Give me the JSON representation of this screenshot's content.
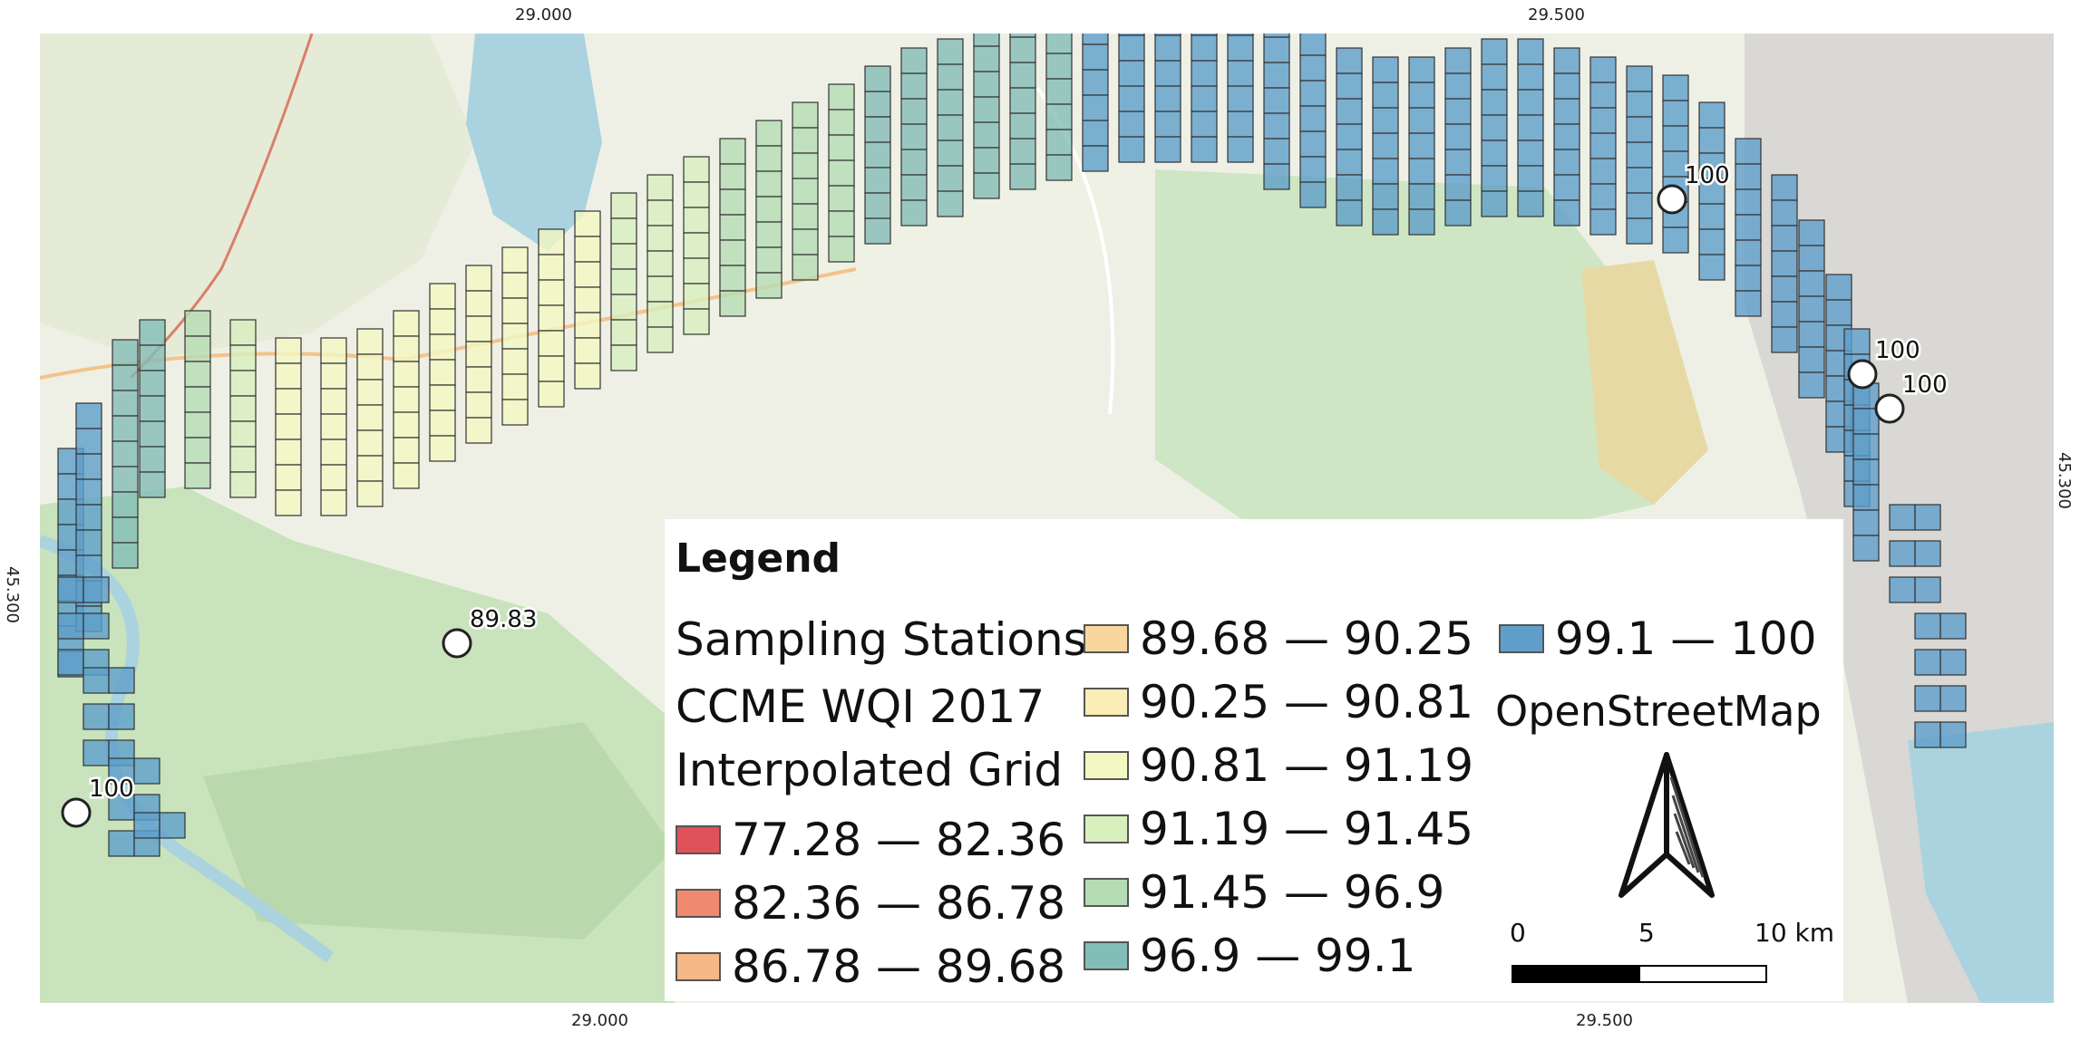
{
  "coordinates": {
    "top": [
      "29.000",
      "29.500"
    ],
    "bottom": [
      "29.000",
      "29.500"
    ],
    "left": "45.300",
    "right": "45.300"
  },
  "stations": [
    {
      "label": "100"
    },
    {
      "label": "89.83"
    },
    {
      "label": "100"
    },
    {
      "label": "100"
    },
    {
      "label": "100"
    }
  ],
  "legend": {
    "title": "Legend",
    "sampling_label": "Sampling Stations",
    "grid_label_line1": "CCME WQI 2017",
    "grid_label_line2": "Interpolated Grid",
    "classes": [
      {
        "label": "77.28 — 82.36",
        "color": "#e0525a"
      },
      {
        "label": "82.36 — 86.78",
        "color": "#ef8a70"
      },
      {
        "label": "86.78 — 89.68",
        "color": "#f6b887"
      },
      {
        "label": "89.68 — 90.25",
        "color": "#f9d69c"
      },
      {
        "label": "90.25 — 90.81",
        "color": "#fbedb6"
      },
      {
        "label": "90.81 — 91.19",
        "color": "#f3f7c2"
      },
      {
        "label": "91.19 — 91.45",
        "color": "#d8efbe"
      },
      {
        "label": "91.45 — 96.9",
        "color": "#b5dcb4"
      },
      {
        "label": "96.9 — 99.1",
        "color": "#83bdb7"
      },
      {
        "label": "99.1 — 100",
        "color": "#5e9fcb"
      }
    ],
    "basemap_label": "OpenStreetMap",
    "scale": {
      "tick0": "0",
      "tick1": "5",
      "tick2": "10 km"
    }
  }
}
